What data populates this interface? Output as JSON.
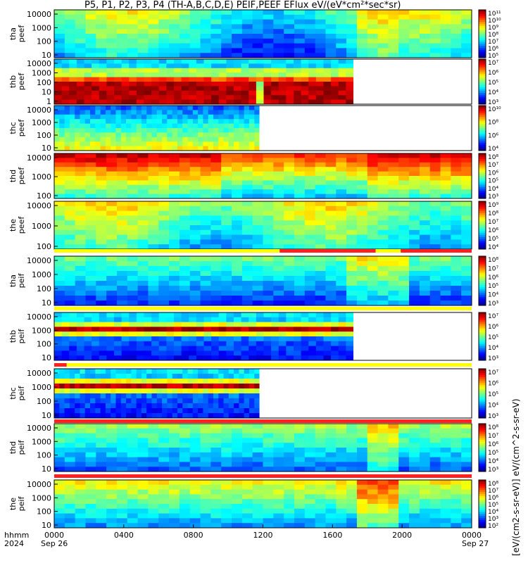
{
  "title": "P5, P1, P2, P3, P4 (TH-A,B,C,D,E) PEIF,PEEF EFlux eV/(eV*cm²*sec*sr)",
  "colorbar_unit": "[eV/(cm2-s-sr-eV)] eV/(cm^2-s-sr-eV)",
  "chart_data": [
    {
      "type": "heatmap",
      "panel_id": "tha-peef",
      "ylabel": [
        "tha",
        "peef"
      ],
      "yticks": [
        "10",
        "100",
        "1000",
        "10000"
      ],
      "colorbar_ticks": [
        "10⁵",
        "10⁶",
        "10⁷",
        "10⁸",
        "10⁹",
        "10¹⁰",
        "10¹¹"
      ],
      "data_coverage_hours": 24,
      "log_y": true
    },
    {
      "type": "heatmap",
      "panel_id": "thb-peef",
      "ylabel": [
        "thb",
        "peef"
      ],
      "yticks": [
        "1",
        "10",
        "100",
        "1000",
        "10000"
      ],
      "colorbar_ticks": [
        "10³",
        "10⁴",
        "10⁵",
        "10⁶",
        "10⁷"
      ],
      "data_coverage_hours": 17.2,
      "log_y": true
    },
    {
      "type": "heatmap",
      "panel_id": "thc-peef",
      "ylabel": [
        "thc",
        "peef"
      ],
      "yticks": [
        "10",
        "100",
        "1000",
        "10000"
      ],
      "colorbar_ticks": [
        "10⁴",
        "10⁶",
        "10⁸",
        "10¹⁰"
      ],
      "data_coverage_hours": 11.8,
      "log_y": true
    },
    {
      "type": "heatmap",
      "panel_id": "thd-peef",
      "ylabel": [
        "thd",
        "peef"
      ],
      "yticks": [
        "100",
        "1000",
        "10000"
      ],
      "colorbar_ticks": [
        "10³",
        "10⁴",
        "10⁵",
        "10⁶",
        "10⁷",
        "10⁸"
      ],
      "data_coverage_hours": 24,
      "log_y": true
    },
    {
      "type": "heatmap",
      "panel_id": "the-peef",
      "ylabel": [
        "the",
        "peef"
      ],
      "yticks": [
        "100",
        "1000",
        "10000"
      ],
      "colorbar_ticks": [
        "10⁴",
        "10⁵",
        "10⁶",
        "10⁷",
        "10⁸",
        "10⁹"
      ],
      "data_coverage_hours": 24,
      "log_y": true
    },
    {
      "type": "heatmap",
      "panel_id": "tha-peif",
      "ylabel": [
        "tha",
        "peif"
      ],
      "yticks": [
        "10",
        "100",
        "1000",
        "10000"
      ],
      "colorbar_ticks": [
        "10³",
        "10⁴",
        "10⁵",
        "10⁶",
        "10⁷",
        "10⁸"
      ],
      "data_coverage_hours": 24,
      "log_y": true
    },
    {
      "type": "heatmap",
      "panel_id": "thb-peif",
      "ylabel": [
        "thb",
        "peif"
      ],
      "yticks": [
        "10",
        "100",
        "1000",
        "10000"
      ],
      "colorbar_ticks": [
        "10³",
        "10⁴",
        "10⁵",
        "10⁶",
        "10⁷"
      ],
      "data_coverage_hours": 17.2,
      "log_y": true
    },
    {
      "type": "heatmap",
      "panel_id": "thc-peif",
      "ylabel": [
        "thc",
        "peif"
      ],
      "yticks": [
        "10",
        "100",
        "1000",
        "10000"
      ],
      "colorbar_ticks": [
        "10³",
        "10⁴",
        "10⁵",
        "10⁶",
        "10⁷"
      ],
      "data_coverage_hours": 11.8,
      "log_y": true
    },
    {
      "type": "heatmap",
      "panel_id": "thd-peif",
      "ylabel": [
        "thd",
        "peif"
      ],
      "yticks": [
        "10",
        "100",
        "1000",
        "10000"
      ],
      "colorbar_ticks": [
        "10³",
        "10⁴",
        "10⁵",
        "10⁶",
        "10⁷",
        "10⁸"
      ],
      "data_coverage_hours": 24,
      "log_y": true
    },
    {
      "type": "heatmap",
      "panel_id": "the-peif",
      "ylabel": [
        "the",
        "peif"
      ],
      "yticks": [
        "10",
        "100",
        "1000",
        "10000"
      ],
      "colorbar_ticks": [
        "10²",
        "10³",
        "10⁴",
        "10⁵",
        "10⁶",
        "10⁷",
        "10⁸"
      ],
      "data_coverage_hours": 24,
      "log_y": true
    }
  ],
  "x_axis": {
    "ticks": [
      "0000",
      "0400",
      "0800",
      "1200",
      "1600",
      "2000",
      "0000"
    ],
    "tick_hours": [
      0,
      4,
      8,
      12,
      16,
      20,
      24
    ],
    "left_caption": [
      "hhmm",
      "2024"
    ],
    "start_date": "Sep 26",
    "end_date": "Sep 27"
  }
}
